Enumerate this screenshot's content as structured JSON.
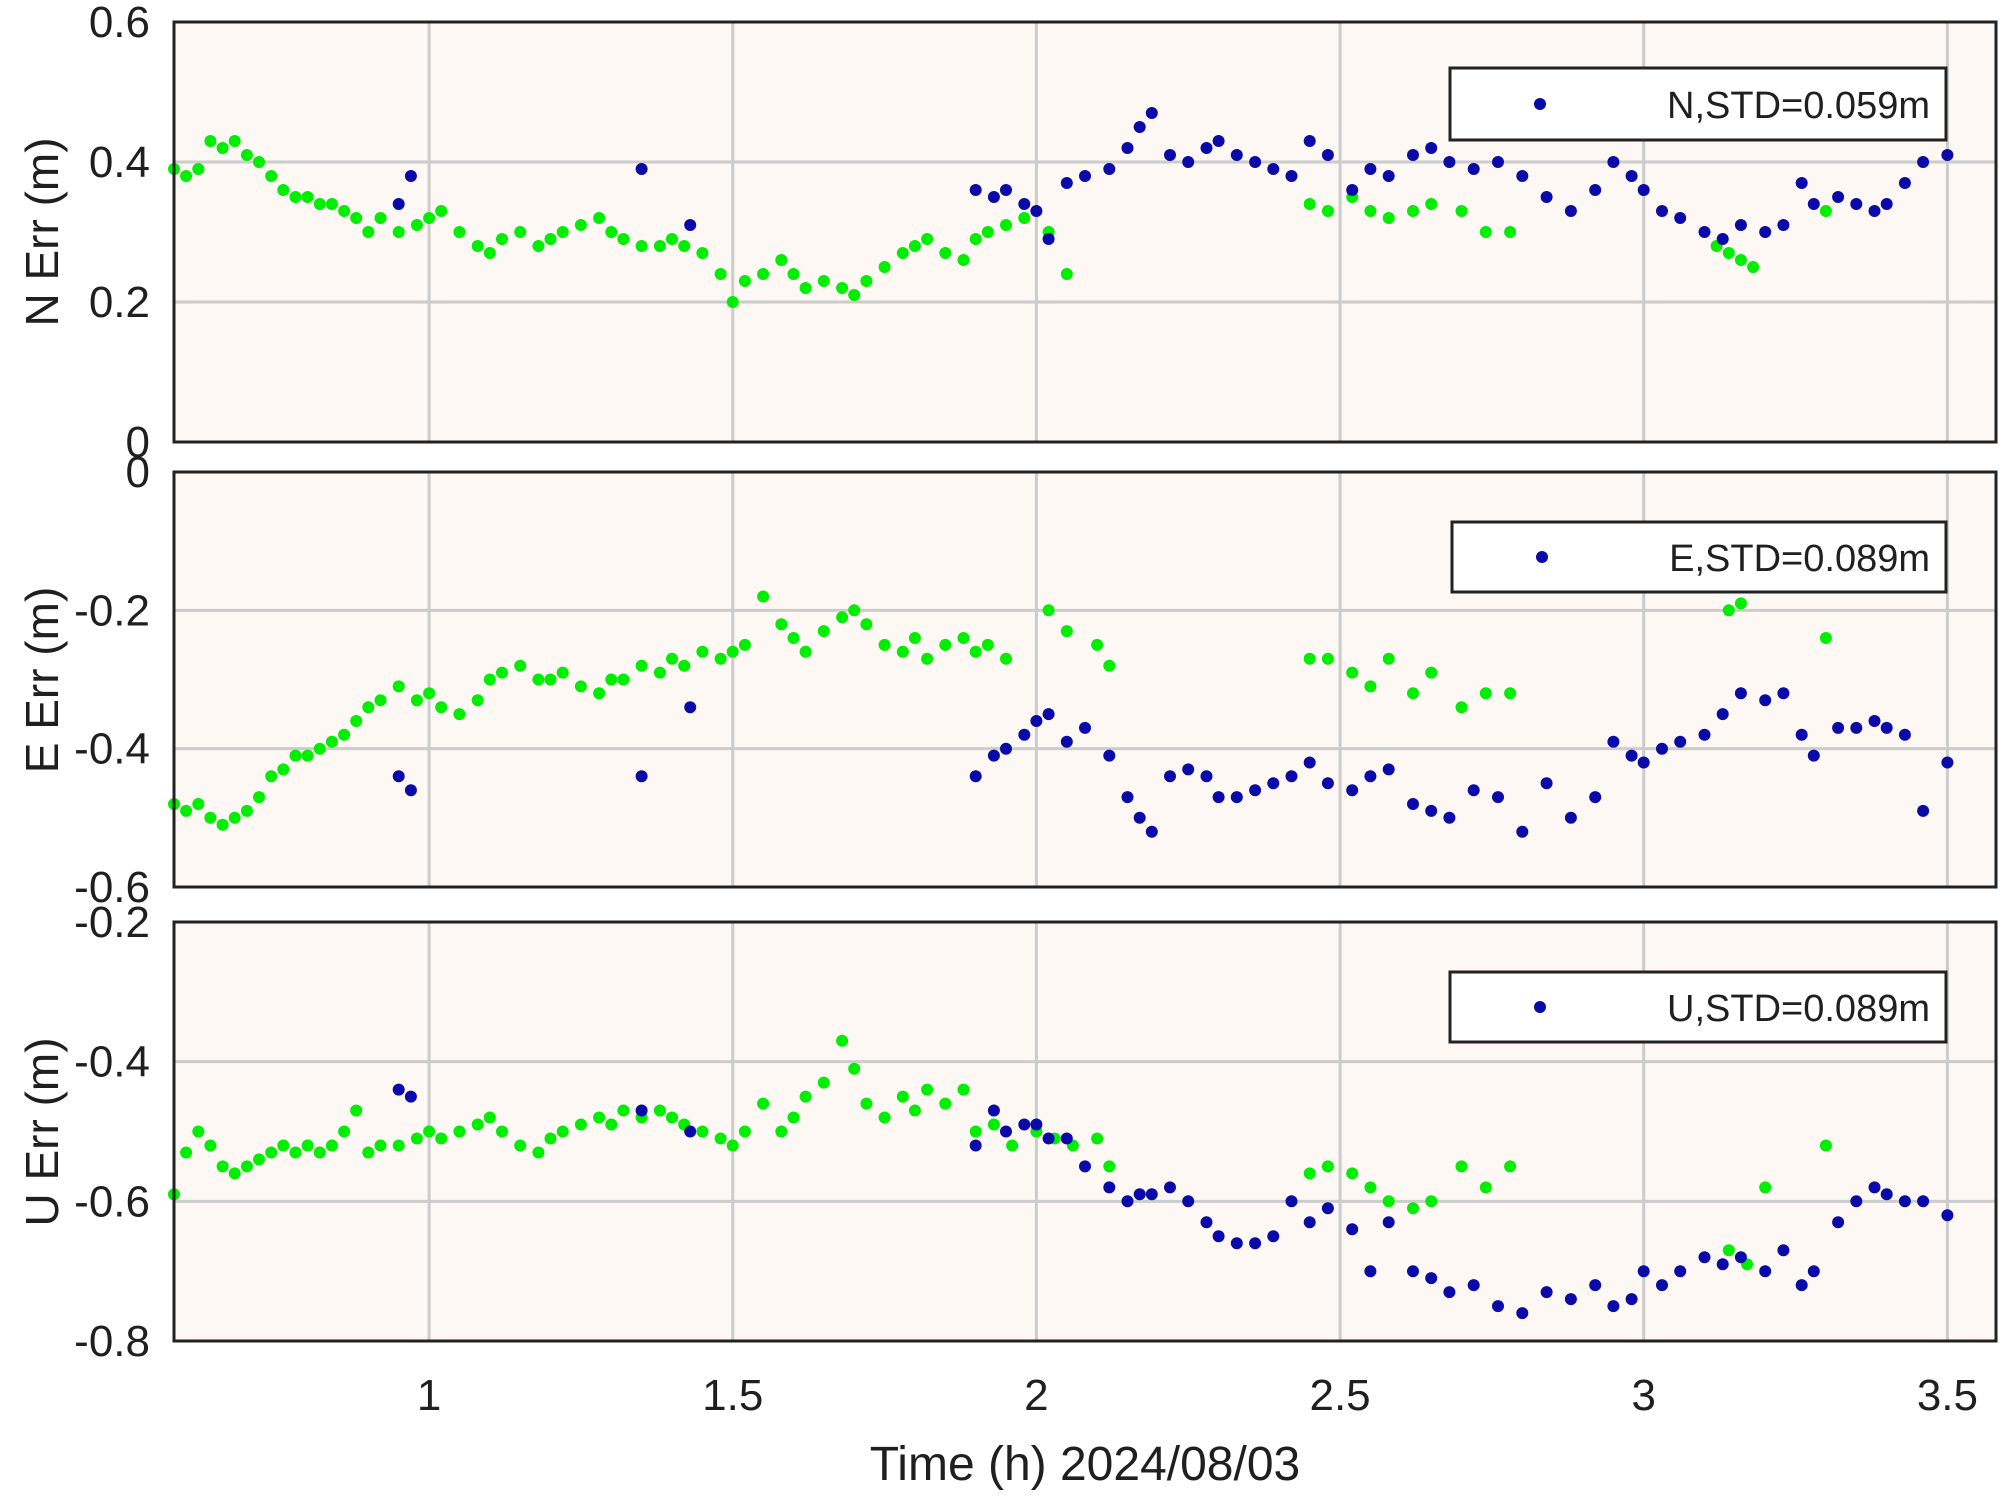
{
  "colors": {
    "fixed": "#00ee00",
    "float": "#0a0aaa",
    "plot_background": "#fdf8f3",
    "grid": "#cccccc",
    "axes": "#222222"
  },
  "xlabel": "Time (h)  2024/08/03",
  "chart_data": [
    {
      "type": "scatter",
      "id": "N",
      "ylabel": "N Err (m)",
      "xlim": [
        0.58,
        3.58
      ],
      "ylim": [
        0,
        0.6
      ],
      "xticks": [
        1,
        1.5,
        2,
        2.5,
        3,
        3.5
      ],
      "xticklabels": [
        "1",
        "1.5",
        "2",
        "2.5",
        "3",
        "3.5"
      ],
      "yticks": [
        0,
        0.2,
        0.4,
        0.6
      ],
      "yticklabels": [
        "0",
        "0.2",
        "0.4",
        "0.6"
      ],
      "grid": true,
      "legend_position": "top-right",
      "legend": [
        {
          "label": "N,STD=0.059m",
          "color": "#0a0aaa"
        }
      ],
      "series": [
        {
          "color": "#00ee00",
          "x": [
            0.58,
            0.6,
            0.62,
            0.64,
            0.66,
            0.68,
            0.7,
            0.72,
            0.74,
            0.76,
            0.78,
            0.8,
            0.82,
            0.84,
            0.86,
            0.88,
            0.9,
            0.92,
            0.95,
            0.98,
            1.0,
            1.02,
            1.05,
            1.08,
            1.1,
            1.12,
            1.15,
            1.18,
            1.2,
            1.22,
            1.25,
            1.28,
            1.3,
            1.32,
            1.35,
            1.38,
            1.4,
            1.42,
            1.45,
            1.48,
            1.5,
            1.52,
            1.55,
            1.58,
            1.6,
            1.62,
            1.65,
            1.68,
            1.7,
            1.72,
            1.75,
            1.78,
            1.8,
            1.82,
            1.85,
            1.88,
            1.9,
            1.92,
            1.95,
            1.98,
            2.02,
            2.05,
            2.45,
            2.48,
            2.52,
            2.55,
            2.58,
            2.62,
            2.65,
            2.7,
            2.74,
            2.78,
            3.12,
            3.14,
            3.16,
            3.18,
            3.3
          ],
          "y": [
            0.39,
            0.38,
            0.39,
            0.43,
            0.42,
            0.43,
            0.41,
            0.4,
            0.38,
            0.36,
            0.35,
            0.35,
            0.34,
            0.34,
            0.33,
            0.32,
            0.3,
            0.32,
            0.3,
            0.31,
            0.32,
            0.33,
            0.3,
            0.28,
            0.27,
            0.29,
            0.3,
            0.28,
            0.29,
            0.3,
            0.31,
            0.32,
            0.3,
            0.29,
            0.28,
            0.28,
            0.29,
            0.28,
            0.27,
            0.24,
            0.2,
            0.23,
            0.24,
            0.26,
            0.24,
            0.22,
            0.23,
            0.22,
            0.21,
            0.23,
            0.25,
            0.27,
            0.28,
            0.29,
            0.27,
            0.26,
            0.29,
            0.3,
            0.31,
            0.32,
            0.3,
            0.24,
            0.34,
            0.33,
            0.35,
            0.33,
            0.32,
            0.33,
            0.34,
            0.33,
            0.3,
            0.3,
            0.28,
            0.27,
            0.26,
            0.25,
            0.33
          ]
        },
        {
          "color": "#0a0aaa",
          "x": [
            0.95,
            0.97,
            1.35,
            1.43,
            1.9,
            1.93,
            1.95,
            1.98,
            2.0,
            2.02,
            2.05,
            2.08,
            2.12,
            2.15,
            2.17,
            2.19,
            2.22,
            2.25,
            2.28,
            2.3,
            2.33,
            2.36,
            2.39,
            2.42,
            2.45,
            2.48,
            2.52,
            2.55,
            2.58,
            2.62,
            2.65,
            2.68,
            2.72,
            2.76,
            2.8,
            2.84,
            2.88,
            2.92,
            2.95,
            2.98,
            3.0,
            3.03,
            3.06,
            3.1,
            3.13,
            3.16,
            3.2,
            3.23,
            3.26,
            3.28,
            3.32,
            3.35,
            3.38,
            3.4,
            3.43,
            3.46,
            3.5
          ],
          "y": [
            0.34,
            0.38,
            0.39,
            0.31,
            0.36,
            0.35,
            0.36,
            0.34,
            0.33,
            0.29,
            0.37,
            0.38,
            0.39,
            0.42,
            0.45,
            0.47,
            0.41,
            0.4,
            0.42,
            0.43,
            0.41,
            0.4,
            0.39,
            0.38,
            0.43,
            0.41,
            0.36,
            0.39,
            0.38,
            0.41,
            0.42,
            0.4,
            0.39,
            0.4,
            0.38,
            0.35,
            0.33,
            0.36,
            0.4,
            0.38,
            0.36,
            0.33,
            0.32,
            0.3,
            0.29,
            0.31,
            0.3,
            0.31,
            0.37,
            0.34,
            0.35,
            0.34,
            0.33,
            0.34,
            0.37,
            0.4,
            0.41
          ]
        }
      ]
    },
    {
      "type": "scatter",
      "id": "E",
      "ylabel": "E Err (m)",
      "xlim": [
        0.58,
        3.58
      ],
      "ylim": [
        -0.6,
        0
      ],
      "xticks": [
        1,
        1.5,
        2,
        2.5,
        3,
        3.5
      ],
      "xticklabels": [
        "1",
        "1.5",
        "2",
        "2.5",
        "3",
        "3.5"
      ],
      "yticks": [
        -0.6,
        -0.4,
        -0.2,
        0
      ],
      "yticklabels": [
        "-0.6",
        "-0.4",
        "-0.2",
        "0"
      ],
      "grid": true,
      "legend_position": "top-right",
      "legend": [
        {
          "label": "E,STD=0.089m",
          "color": "#0a0aaa"
        }
      ],
      "series": [
        {
          "color": "#00ee00",
          "x": [
            0.58,
            0.6,
            0.62,
            0.64,
            0.66,
            0.68,
            0.7,
            0.72,
            0.74,
            0.76,
            0.78,
            0.8,
            0.82,
            0.84,
            0.86,
            0.88,
            0.9,
            0.92,
            0.95,
            0.98,
            1.0,
            1.02,
            1.05,
            1.08,
            1.1,
            1.12,
            1.15,
            1.18,
            1.2,
            1.22,
            1.25,
            1.28,
            1.3,
            1.32,
            1.35,
            1.38,
            1.4,
            1.42,
            1.45,
            1.48,
            1.5,
            1.52,
            1.55,
            1.58,
            1.6,
            1.62,
            1.65,
            1.68,
            1.7,
            1.72,
            1.75,
            1.78,
            1.8,
            1.82,
            1.85,
            1.88,
            1.9,
            1.92,
            1.95,
            2.02,
            2.05,
            2.1,
            2.12,
            2.45,
            2.48,
            2.52,
            2.55,
            2.58,
            2.62,
            2.65,
            2.7,
            2.74,
            2.78,
            3.14,
            3.16,
            3.3
          ],
          "y": [
            -0.48,
            -0.49,
            -0.48,
            -0.5,
            -0.51,
            -0.5,
            -0.49,
            -0.47,
            -0.44,
            -0.43,
            -0.41,
            -0.41,
            -0.4,
            -0.39,
            -0.38,
            -0.36,
            -0.34,
            -0.33,
            -0.31,
            -0.33,
            -0.32,
            -0.34,
            -0.35,
            -0.33,
            -0.3,
            -0.29,
            -0.28,
            -0.3,
            -0.3,
            -0.29,
            -0.31,
            -0.32,
            -0.3,
            -0.3,
            -0.28,
            -0.29,
            -0.27,
            -0.28,
            -0.26,
            -0.27,
            -0.26,
            -0.25,
            -0.18,
            -0.22,
            -0.24,
            -0.26,
            -0.23,
            -0.21,
            -0.2,
            -0.22,
            -0.25,
            -0.26,
            -0.24,
            -0.27,
            -0.25,
            -0.24,
            -0.26,
            -0.25,
            -0.27,
            -0.2,
            -0.23,
            -0.25,
            -0.28,
            -0.27,
            -0.27,
            -0.29,
            -0.31,
            -0.27,
            -0.32,
            -0.29,
            -0.34,
            -0.32,
            -0.32,
            -0.2,
            -0.19,
            -0.24
          ]
        },
        {
          "color": "#0a0aaa",
          "x": [
            0.95,
            0.97,
            1.35,
            1.43,
            1.9,
            1.93,
            1.95,
            1.98,
            2.0,
            2.02,
            2.05,
            2.08,
            2.12,
            2.15,
            2.17,
            2.19,
            2.22,
            2.25,
            2.28,
            2.3,
            2.33,
            2.36,
            2.39,
            2.42,
            2.45,
            2.48,
            2.52,
            2.55,
            2.58,
            2.62,
            2.65,
            2.68,
            2.72,
            2.76,
            2.8,
            2.84,
            2.88,
            2.92,
            2.95,
            2.98,
            3.0,
            3.03,
            3.06,
            3.1,
            3.13,
            3.16,
            3.2,
            3.23,
            3.26,
            3.28,
            3.32,
            3.35,
            3.38,
            3.4,
            3.43,
            3.46,
            3.5
          ],
          "y": [
            -0.44,
            -0.46,
            -0.44,
            -0.34,
            -0.44,
            -0.41,
            -0.4,
            -0.38,
            -0.36,
            -0.35,
            -0.39,
            -0.37,
            -0.41,
            -0.47,
            -0.5,
            -0.52,
            -0.44,
            -0.43,
            -0.44,
            -0.47,
            -0.47,
            -0.46,
            -0.45,
            -0.44,
            -0.42,
            -0.45,
            -0.46,
            -0.44,
            -0.43,
            -0.48,
            -0.49,
            -0.5,
            -0.46,
            -0.47,
            -0.52,
            -0.45,
            -0.5,
            -0.47,
            -0.39,
            -0.41,
            -0.42,
            -0.4,
            -0.39,
            -0.38,
            -0.35,
            -0.32,
            -0.33,
            -0.32,
            -0.38,
            -0.41,
            -0.37,
            -0.37,
            -0.36,
            -0.37,
            -0.38,
            -0.49,
            -0.42
          ]
        }
      ]
    },
    {
      "type": "scatter",
      "id": "U",
      "ylabel": "U Err (m)",
      "xlim": [
        0.58,
        3.58
      ],
      "ylim": [
        -0.8,
        -0.2
      ],
      "xticks": [
        1,
        1.5,
        2,
        2.5,
        3,
        3.5
      ],
      "xticklabels": [
        "1",
        "1.5",
        "2",
        "2.5",
        "3",
        "3.5"
      ],
      "yticks": [
        -0.8,
        -0.6,
        -0.4,
        -0.2
      ],
      "yticklabels": [
        "-0.8",
        "-0.6",
        "-0.4",
        "-0.2"
      ],
      "grid": true,
      "legend_position": "top-right",
      "legend": [
        {
          "label": "U,STD=0.089m",
          "color": "#0a0aaa"
        }
      ],
      "series": [
        {
          "color": "#00ee00",
          "x": [
            0.58,
            0.6,
            0.62,
            0.64,
            0.66,
            0.68,
            0.7,
            0.72,
            0.74,
            0.76,
            0.78,
            0.8,
            0.82,
            0.84,
            0.86,
            0.88,
            0.9,
            0.92,
            0.95,
            0.98,
            1.0,
            1.02,
            1.05,
            1.08,
            1.1,
            1.12,
            1.15,
            1.18,
            1.2,
            1.22,
            1.25,
            1.28,
            1.3,
            1.32,
            1.35,
            1.38,
            1.4,
            1.42,
            1.45,
            1.48,
            1.5,
            1.52,
            1.55,
            1.58,
            1.6,
            1.62,
            1.65,
            1.68,
            1.7,
            1.72,
            1.75,
            1.78,
            1.8,
            1.82,
            1.85,
            1.88,
            1.9,
            1.93,
            1.96,
            2.0,
            2.03,
            2.06,
            2.1,
            2.12,
            2.45,
            2.48,
            2.52,
            2.55,
            2.58,
            2.62,
            2.65,
            2.7,
            2.74,
            2.78,
            3.14,
            3.17,
            3.2,
            3.3
          ],
          "y": [
            -0.59,
            -0.53,
            -0.5,
            -0.52,
            -0.55,
            -0.56,
            -0.55,
            -0.54,
            -0.53,
            -0.52,
            -0.53,
            -0.52,
            -0.53,
            -0.52,
            -0.5,
            -0.47,
            -0.53,
            -0.52,
            -0.52,
            -0.51,
            -0.5,
            -0.51,
            -0.5,
            -0.49,
            -0.48,
            -0.5,
            -0.52,
            -0.53,
            -0.51,
            -0.5,
            -0.49,
            -0.48,
            -0.49,
            -0.47,
            -0.48,
            -0.47,
            -0.48,
            -0.49,
            -0.5,
            -0.51,
            -0.52,
            -0.5,
            -0.46,
            -0.5,
            -0.48,
            -0.45,
            -0.43,
            -0.37,
            -0.41,
            -0.46,
            -0.48,
            -0.45,
            -0.47,
            -0.44,
            -0.46,
            -0.44,
            -0.5,
            -0.49,
            -0.52,
            -0.5,
            -0.51,
            -0.52,
            -0.51,
            -0.55,
            -0.56,
            -0.55,
            -0.56,
            -0.58,
            -0.6,
            -0.61,
            -0.6,
            -0.55,
            -0.58,
            -0.55,
            -0.67,
            -0.69,
            -0.58,
            -0.52
          ]
        },
        {
          "color": "#0a0aaa",
          "x": [
            0.95,
            0.97,
            1.35,
            1.43,
            1.9,
            1.93,
            1.95,
            1.98,
            2.0,
            2.02,
            2.05,
            2.08,
            2.12,
            2.15,
            2.17,
            2.19,
            2.22,
            2.25,
            2.28,
            2.3,
            2.33,
            2.36,
            2.39,
            2.42,
            2.45,
            2.48,
            2.52,
            2.55,
            2.58,
            2.62,
            2.65,
            2.68,
            2.72,
            2.76,
            2.8,
            2.84,
            2.88,
            2.92,
            2.95,
            2.98,
            3.0,
            3.03,
            3.06,
            3.1,
            3.13,
            3.16,
            3.2,
            3.23,
            3.26,
            3.28,
            3.32,
            3.35,
            3.38,
            3.4,
            3.43,
            3.46,
            3.5
          ],
          "y": [
            -0.44,
            -0.45,
            -0.47,
            -0.5,
            -0.52,
            -0.47,
            -0.5,
            -0.49,
            -0.49,
            -0.51,
            -0.51,
            -0.55,
            -0.58,
            -0.6,
            -0.59,
            -0.59,
            -0.58,
            -0.6,
            -0.63,
            -0.65,
            -0.66,
            -0.66,
            -0.65,
            -0.6,
            -0.63,
            -0.61,
            -0.64,
            -0.7,
            -0.63,
            -0.7,
            -0.71,
            -0.73,
            -0.72,
            -0.75,
            -0.76,
            -0.73,
            -0.74,
            -0.72,
            -0.75,
            -0.74,
            -0.7,
            -0.72,
            -0.7,
            -0.68,
            -0.69,
            -0.68,
            -0.7,
            -0.67,
            -0.72,
            -0.7,
            -0.63,
            -0.6,
            -0.58,
            -0.59,
            -0.6,
            -0.6,
            -0.62
          ]
        }
      ]
    }
  ]
}
